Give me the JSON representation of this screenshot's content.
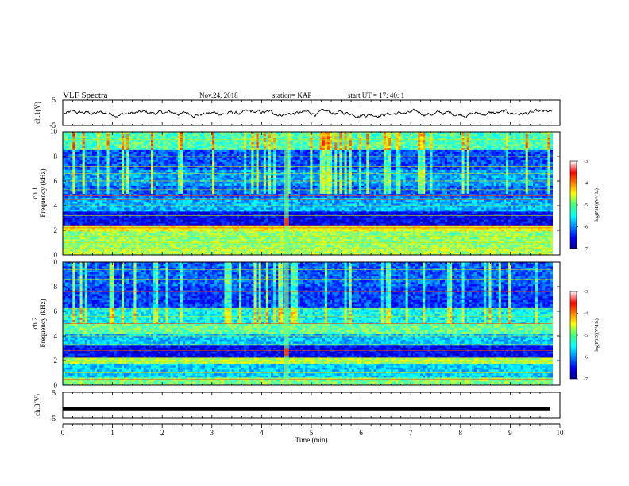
{
  "header": {
    "title": "VLF Spectra",
    "date": "Nov.24, 2018",
    "station": "station= KAP",
    "start": "start  UT =   17: 40: 1"
  },
  "chart_data": [
    {
      "type": "line",
      "panel": "ch1-waveform",
      "ylabel": "ch.1(V)",
      "yticks": [
        "5",
        "-5"
      ],
      "ylim": [
        -5,
        5
      ],
      "xlim": [
        0,
        10
      ],
      "series": [
        {
          "values_description_omitted": true
        }
      ],
      "x_end": 9.85,
      "amplitude_range": [
        -2,
        1.5
      ]
    },
    {
      "type": "heatmap",
      "panel": "ch1-spectrogram",
      "ylabel": "ch.1\nFrequency (kHz)",
      "ylabel_lines": [
        "ch.1",
        "Frequency (kHz)"
      ],
      "yticks": [
        "0",
        "2",
        "4",
        "6",
        "8",
        "10"
      ],
      "ylim": [
        0,
        10
      ],
      "xlim": [
        0,
        10
      ],
      "x_end": 9.85,
      "burst_time": 4.5,
      "colorbar": {
        "label": "log(PSD)(V²/Hz)",
        "ticks": [
          "-3",
          "-4",
          "-5",
          "-6",
          "-7"
        ],
        "range": [
          -7,
          -3
        ]
      }
    },
    {
      "type": "heatmap",
      "panel": "ch2-spectrogram",
      "ylabel_lines": [
        "ch.2",
        "Frequency (kHz)"
      ],
      "yticks": [
        "0",
        "2",
        "4",
        "6",
        "8",
        "10"
      ],
      "ylim": [
        0,
        10
      ],
      "xlim": [
        0,
        10
      ],
      "x_end": 9.85,
      "burst_time": 4.5,
      "colorbar": {
        "label": "log(PSD)(V²/Hz)",
        "ticks": [
          "-3",
          "-4",
          "-5",
          "-6",
          "-7"
        ],
        "range": [
          -7,
          -3
        ]
      }
    },
    {
      "type": "line",
      "panel": "ch3-waveform",
      "ylabel": "ch.3(V)",
      "yticks": [
        "5",
        "-5"
      ],
      "ylim": [
        -5,
        5
      ],
      "xlim": [
        0,
        10
      ],
      "flat_value": -1.5
    }
  ],
  "xaxis": {
    "label": "Time  (min)",
    "ticks": [
      "0",
      "1",
      "2",
      "3",
      "4",
      "5",
      "6",
      "7",
      "8",
      "9",
      "10"
    ]
  },
  "colors": {
    "ink": "#000000",
    "jet_low": "#00008f",
    "jet_high": "#800000"
  }
}
